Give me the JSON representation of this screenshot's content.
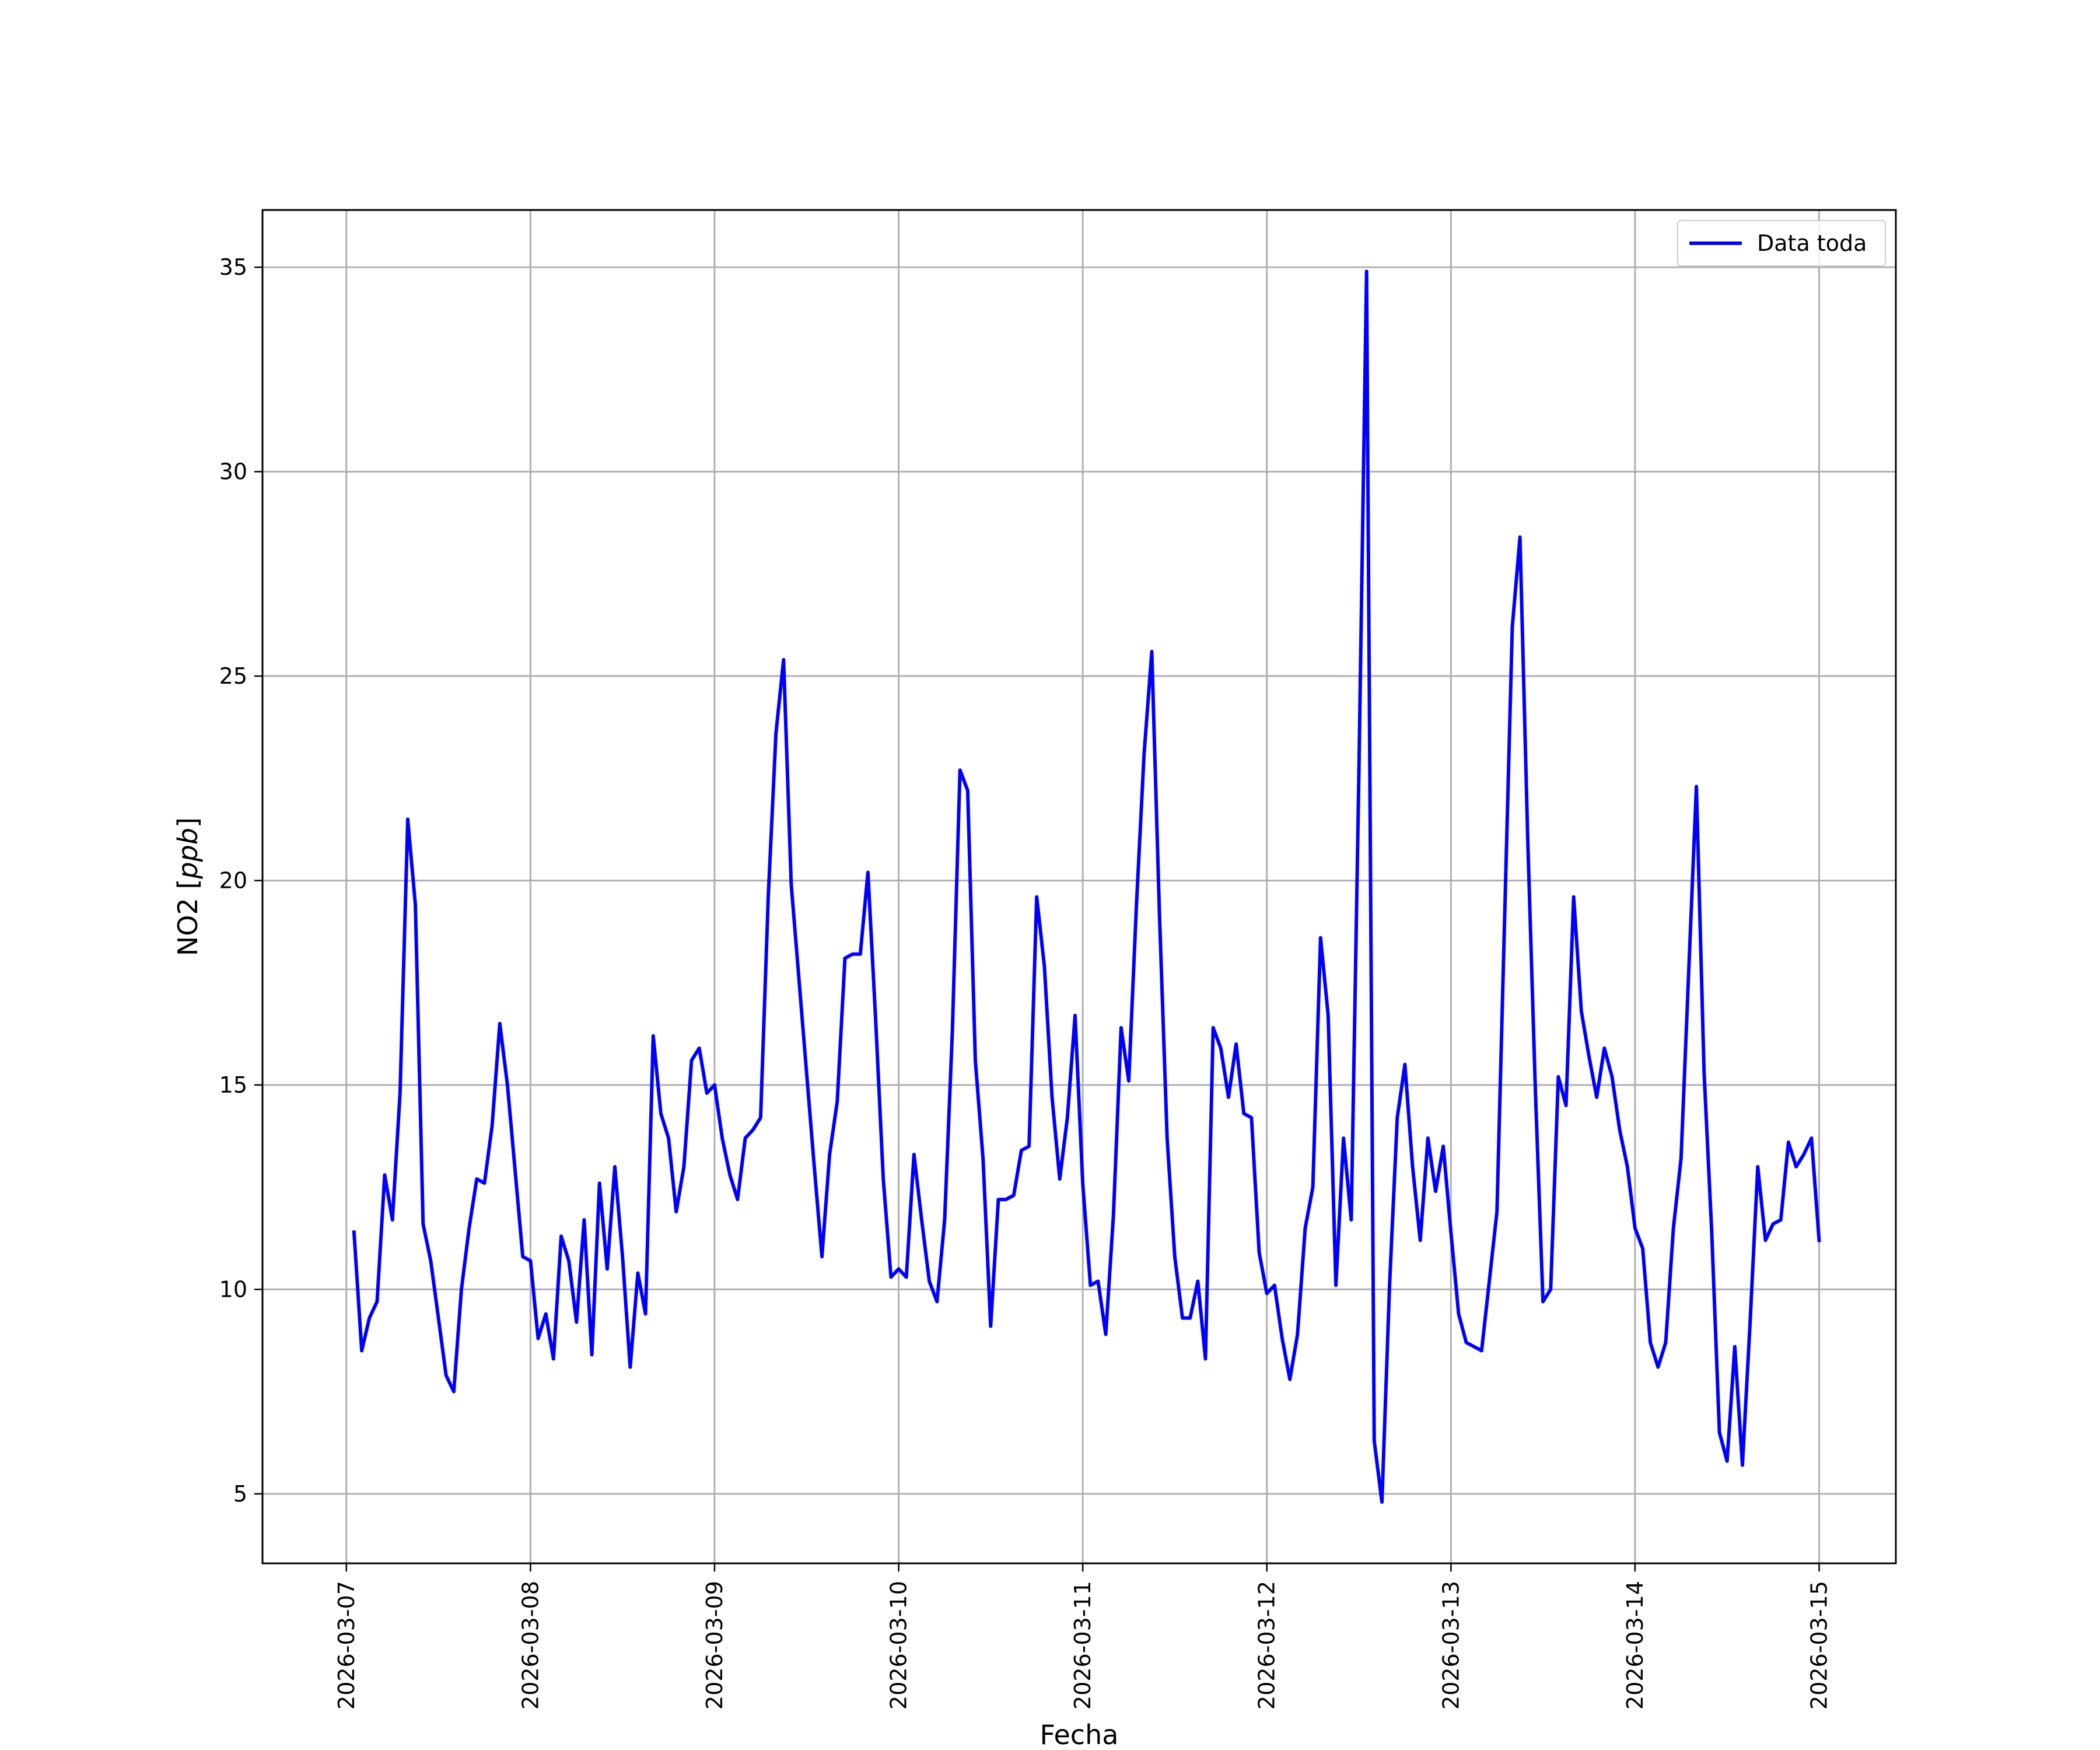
{
  "chart_data": {
    "type": "line",
    "xlabel": "Fecha",
    "ylabel": "NO2 [",
    "ylabel_unit": "ppb",
    "ylabel_suffix": "]",
    "x_tick_labels": [
      "2026-03-07",
      "2026-03-08",
      "2026-03-09",
      "2026-03-10",
      "2026-03-11",
      "2026-03-12",
      "2026-03-13",
      "2026-03-14",
      "2026-03-15"
    ],
    "y_ticks": [
      5,
      10,
      15,
      20,
      25,
      30,
      35
    ],
    "xlim": [
      "2026-03-06 13:04",
      "2026-03-15 10:00"
    ],
    "ylim": [
      3.3,
      36.4
    ],
    "grid": true,
    "legend_position": "top-right",
    "colors": {
      "line": "#0000ff",
      "grid": "#b0b0b0",
      "frame": "#000000"
    },
    "series": [
      {
        "name": "Data toda",
        "x": [
          "2026-03-07 01:00",
          "2026-03-07 02:00",
          "2026-03-07 03:00",
          "2026-03-07 04:00",
          "2026-03-07 05:00",
          "2026-03-07 06:00",
          "2026-03-07 07:00",
          "2026-03-07 08:00",
          "2026-03-07 09:00",
          "2026-03-07 10:00",
          "2026-03-07 11:00",
          "2026-03-07 12:00",
          "2026-03-07 13:00",
          "2026-03-07 14:00",
          "2026-03-07 15:00",
          "2026-03-07 16:00",
          "2026-03-07 17:00",
          "2026-03-07 18:00",
          "2026-03-07 19:00",
          "2026-03-07 20:00",
          "2026-03-07 21:00",
          "2026-03-07 22:00",
          "2026-03-07 23:00",
          "2026-03-08 00:00",
          "2026-03-08 01:00",
          "2026-03-08 02:00",
          "2026-03-08 03:00",
          "2026-03-08 04:00",
          "2026-03-08 05:00",
          "2026-03-08 06:00",
          "2026-03-08 07:00",
          "2026-03-08 08:00",
          "2026-03-08 09:00",
          "2026-03-08 10:00",
          "2026-03-08 11:00",
          "2026-03-08 12:00",
          "2026-03-08 13:00",
          "2026-03-08 14:00",
          "2026-03-08 15:00",
          "2026-03-08 16:00",
          "2026-03-08 17:00",
          "2026-03-08 18:00",
          "2026-03-08 19:00",
          "2026-03-08 20:00",
          "2026-03-08 21:00",
          "2026-03-08 22:00",
          "2026-03-08 23:00",
          "2026-03-09 00:00",
          "2026-03-09 01:00",
          "2026-03-09 02:00",
          "2026-03-09 03:00",
          "2026-03-09 04:00",
          "2026-03-09 05:00",
          "2026-03-09 06:00",
          "2026-03-09 07:00",
          "2026-03-09 08:00",
          "2026-03-09 09:00",
          "2026-03-09 10:00",
          "2026-03-09 11:00",
          "2026-03-09 12:00",
          "2026-03-09 13:00",
          "2026-03-09 14:00",
          "2026-03-09 15:00",
          "2026-03-09 16:00",
          "2026-03-09 17:00",
          "2026-03-09 18:00",
          "2026-03-09 19:00",
          "2026-03-09 20:00",
          "2026-03-09 21:00",
          "2026-03-09 22:00",
          "2026-03-09 23:00",
          "2026-03-10 00:00",
          "2026-03-10 01:00",
          "2026-03-10 02:00",
          "2026-03-10 03:00",
          "2026-03-10 04:00",
          "2026-03-10 05:00",
          "2026-03-10 06:00",
          "2026-03-10 07:00",
          "2026-03-10 08:00",
          "2026-03-10 09:00",
          "2026-03-10 10:00",
          "2026-03-10 11:00",
          "2026-03-10 12:00",
          "2026-03-10 13:00",
          "2026-03-10 14:00",
          "2026-03-10 15:00",
          "2026-03-10 16:00",
          "2026-03-10 17:00",
          "2026-03-10 18:00",
          "2026-03-10 19:00",
          "2026-03-10 20:00",
          "2026-03-10 21:00",
          "2026-03-10 22:00",
          "2026-03-10 23:00",
          "2026-03-11 00:00",
          "2026-03-11 01:00",
          "2026-03-11 02:00",
          "2026-03-11 03:00",
          "2026-03-11 04:00",
          "2026-03-11 05:00",
          "2026-03-11 06:00",
          "2026-03-11 07:00",
          "2026-03-11 08:00",
          "2026-03-11 09:00",
          "2026-03-11 10:00",
          "2026-03-11 11:00",
          "2026-03-11 12:00",
          "2026-03-11 13:00",
          "2026-03-11 14:00",
          "2026-03-11 15:00",
          "2026-03-11 16:00",
          "2026-03-11 17:00",
          "2026-03-11 18:00",
          "2026-03-11 19:00",
          "2026-03-11 20:00",
          "2026-03-11 21:00",
          "2026-03-11 22:00",
          "2026-03-11 23:00",
          "2026-03-12 00:00",
          "2026-03-12 01:00",
          "2026-03-12 02:00",
          "2026-03-12 03:00",
          "2026-03-12 04:00",
          "2026-03-12 05:00",
          "2026-03-12 06:00",
          "2026-03-12 07:00",
          "2026-03-12 08:00",
          "2026-03-12 09:00",
          "2026-03-12 10:00",
          "2026-03-12 11:00",
          "2026-03-12 12:00",
          "2026-03-12 13:00",
          "2026-03-12 14:00",
          "2026-03-12 15:00",
          "2026-03-12 16:00",
          "2026-03-12 17:00",
          "2026-03-12 18:00",
          "2026-03-12 19:00",
          "2026-03-12 20:00",
          "2026-03-12 21:00",
          "2026-03-12 22:00",
          "2026-03-12 23:00",
          "2026-03-13 00:00",
          "2026-03-13 01:00",
          "2026-03-13 02:00",
          "2026-03-13 03:00",
          "2026-03-13 04:00",
          "2026-03-13 05:00",
          "2026-03-13 06:00",
          "2026-03-13 07:00",
          "2026-03-13 08:00",
          "2026-03-13 09:00",
          "2026-03-13 10:00",
          "2026-03-13 11:00",
          "2026-03-13 12:00",
          "2026-03-13 13:00",
          "2026-03-13 14:00",
          "2026-03-13 15:00",
          "2026-03-13 16:00",
          "2026-03-13 17:00",
          "2026-03-13 18:00",
          "2026-03-13 19:00",
          "2026-03-13 20:00",
          "2026-03-13 21:00",
          "2026-03-13 22:00",
          "2026-03-13 23:00",
          "2026-03-14 00:00",
          "2026-03-14 01:00",
          "2026-03-14 02:00",
          "2026-03-14 03:00",
          "2026-03-14 04:00",
          "2026-03-14 05:00",
          "2026-03-14 06:00",
          "2026-03-14 07:00",
          "2026-03-14 08:00",
          "2026-03-14 09:00",
          "2026-03-14 10:00",
          "2026-03-14 11:00",
          "2026-03-14 12:00",
          "2026-03-14 13:00",
          "2026-03-14 14:00",
          "2026-03-14 15:00",
          "2026-03-14 16:00",
          "2026-03-14 17:00",
          "2026-03-14 18:00",
          "2026-03-14 19:00",
          "2026-03-14 20:00",
          "2026-03-14 21:00",
          "2026-03-14 22:00",
          "2026-03-14 23:00",
          "2026-03-15 00:00"
        ],
        "y": [
          11.4,
          8.5,
          9.3,
          9.7,
          12.8,
          11.7,
          14.8,
          21.5,
          19.4,
          11.6,
          10.7,
          9.3,
          7.9,
          7.5,
          10.0,
          11.5,
          12.7,
          12.6,
          14.0,
          16.5,
          15.0,
          12.9,
          10.8,
          10.7,
          8.8,
          9.4,
          8.3,
          11.3,
          10.7,
          9.2,
          11.7,
          8.4,
          12.6,
          10.5,
          13.0,
          10.8,
          8.1,
          10.4,
          9.4,
          16.2,
          14.3,
          13.7,
          11.9,
          13.0,
          15.6,
          15.9,
          14.8,
          15.0,
          13.7,
          12.8,
          12.2,
          13.7,
          13.9,
          14.2,
          19.6,
          23.6,
          25.4,
          19.9,
          17.6,
          15.3,
          13.0,
          10.8,
          13.3,
          14.6,
          18.1,
          18.2,
          18.2,
          20.2,
          16.6,
          12.7,
          10.3,
          10.5,
          10.3,
          13.3,
          11.7,
          10.2,
          9.7,
          11.7,
          16.3,
          22.7,
          22.2,
          15.6,
          13.2,
          9.1,
          12.2,
          12.2,
          12.3,
          13.4,
          13.5,
          19.6,
          17.9,
          14.7,
          12.7,
          14.2,
          16.7,
          12.6,
          10.1,
          10.2,
          8.9,
          11.8,
          16.4,
          15.1,
          19.4,
          23.1,
          25.6,
          19.2,
          13.7,
          10.8,
          9.3,
          9.3,
          10.2,
          8.3,
          16.4,
          15.9,
          14.7,
          16.0,
          14.3,
          14.2,
          10.9,
          9.9,
          10.1,
          8.8,
          7.8,
          8.9,
          11.5,
          12.5,
          18.6,
          16.7,
          10.1,
          13.7,
          11.7,
          22.6,
          34.9,
          6.3,
          4.8,
          10.1,
          14.2,
          15.5,
          13.0,
          11.2,
          13.7,
          12.4,
          13.5,
          11.4,
          9.4,
          8.7,
          8.6,
          8.5,
          10.2,
          11.9,
          19.1,
          26.2,
          28.4,
          21.1,
          14.9,
          9.7,
          10.0,
          15.2,
          14.5,
          19.6,
          16.8,
          15.7,
          14.7,
          15.9,
          15.2,
          13.9,
          13.0,
          11.5,
          11.0,
          8.7,
          8.1,
          8.7,
          11.5,
          13.2,
          17.8,
          22.3,
          15.3,
          11.4,
          6.5,
          5.8,
          8.6,
          5.7,
          9.2,
          13.0,
          11.2,
          11.6,
          11.7,
          13.6,
          13.0,
          13.3,
          13.7,
          11.2
        ]
      }
    ]
  }
}
